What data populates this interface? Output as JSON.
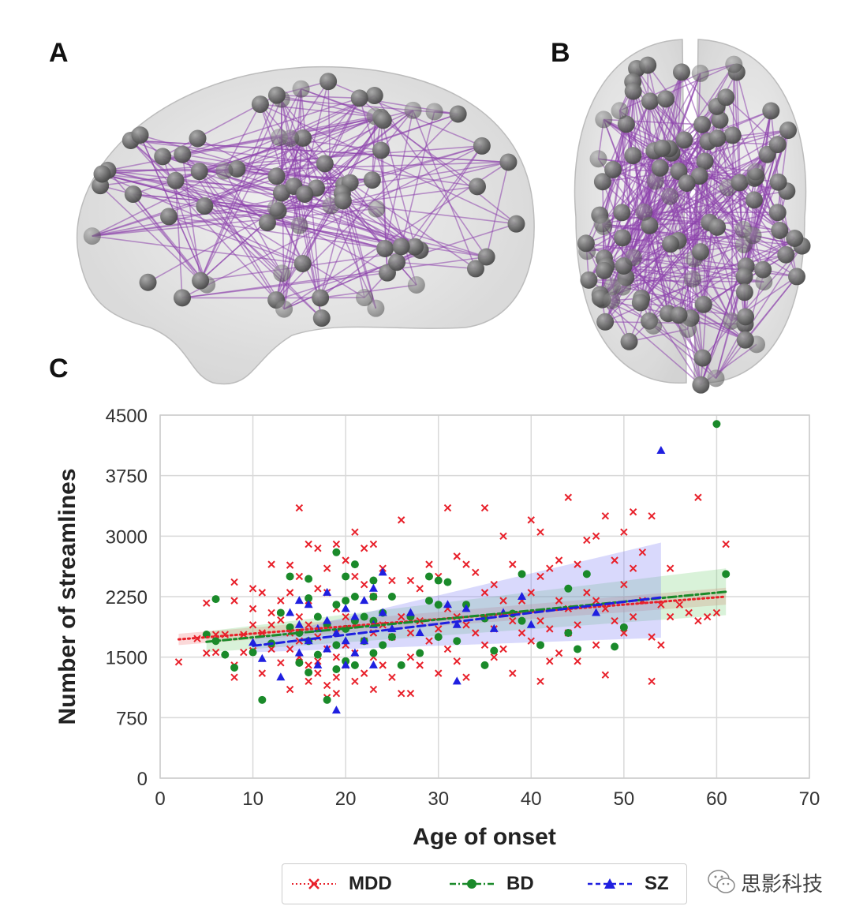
{
  "panels": {
    "a_label": "A",
    "b_label": "B",
    "c_label": "C"
  },
  "brain_colors": {
    "shell": "#d9d9d9",
    "node": "#6e6e6e",
    "edge": "#8e44ad"
  },
  "legend": {
    "items": [
      {
        "label": "MDD",
        "color": "#e8202a",
        "marker": "x",
        "linestyle": "dotted"
      },
      {
        "label": "BD",
        "color": "#1a8a2a",
        "marker": "circle",
        "linestyle": "dashdot"
      },
      {
        "label": "SZ",
        "color": "#1f1fe0",
        "marker": "triangle",
        "linestyle": "dashed"
      }
    ]
  },
  "watermark": {
    "text": "思影科技",
    "icon": "wechat-icon"
  },
  "chart_data": {
    "type": "scatter",
    "title": "",
    "xlabel": "Age of onset",
    "ylabel": "Number of streamlines",
    "xlim": [
      0,
      70
    ],
    "ylim": [
      0,
      4500
    ],
    "xticks": [
      0,
      10,
      20,
      30,
      40,
      50,
      60,
      70
    ],
    "yticks": [
      0,
      750,
      1500,
      2250,
      3000,
      3750,
      4500
    ],
    "grid": true,
    "legend_position": "bottom",
    "series": [
      {
        "name": "MDD",
        "color": "#e8202a",
        "marker": "x",
        "fit": {
          "x": [
            2,
            61
          ],
          "y": [
            1720,
            2250
          ]
        },
        "ci": {
          "x": [
            2,
            61
          ],
          "lower": [
            1650,
            2150
          ],
          "upper": [
            1790,
            2360
          ]
        },
        "points": [
          [
            2,
            1440
          ],
          [
            4,
            1730
          ],
          [
            5,
            2170
          ],
          [
            5,
            1550
          ],
          [
            6,
            1560
          ],
          [
            6,
            1780
          ],
          [
            7,
            1780
          ],
          [
            8,
            2430
          ],
          [
            8,
            2200
          ],
          [
            8,
            1400
          ],
          [
            8,
            1250
          ],
          [
            9,
            1560
          ],
          [
            9,
            1780
          ],
          [
            10,
            2350
          ],
          [
            10,
            1580
          ],
          [
            10,
            2100
          ],
          [
            10,
            1900
          ],
          [
            11,
            1300
          ],
          [
            11,
            2300
          ],
          [
            11,
            1800
          ],
          [
            12,
            2650
          ],
          [
            12,
            1600
          ],
          [
            12,
            1900
          ],
          [
            12,
            2050
          ],
          [
            13,
            1960
          ],
          [
            13,
            2200
          ],
          [
            13,
            1430
          ],
          [
            14,
            2640
          ],
          [
            14,
            2300
          ],
          [
            14,
            1600
          ],
          [
            14,
            1800
          ],
          [
            14,
            1100
          ],
          [
            15,
            3350
          ],
          [
            15,
            2000
          ],
          [
            15,
            1700
          ],
          [
            15,
            1500
          ],
          [
            15,
            2500
          ],
          [
            16,
            2900
          ],
          [
            16,
            1400
          ],
          [
            16,
            1900
          ],
          [
            16,
            1200
          ],
          [
            16,
            2200
          ],
          [
            17,
            2850
          ],
          [
            17,
            1750
          ],
          [
            17,
            1450
          ],
          [
            17,
            2350
          ],
          [
            17,
            1300
          ],
          [
            18,
            2300
          ],
          [
            18,
            2600
          ],
          [
            18,
            1600
          ],
          [
            18,
            1900
          ],
          [
            18,
            1150
          ],
          [
            19,
            2900
          ],
          [
            19,
            2100
          ],
          [
            19,
            1800
          ],
          [
            19,
            1500
          ],
          [
            19,
            1250
          ],
          [
            20,
            2700
          ],
          [
            20,
            2000
          ],
          [
            20,
            1650
          ],
          [
            20,
            1400
          ],
          [
            21,
            3050
          ],
          [
            21,
            2500
          ],
          [
            21,
            1900
          ],
          [
            21,
            1550
          ],
          [
            21,
            1200
          ],
          [
            22,
            2850
          ],
          [
            22,
            2400
          ],
          [
            22,
            1700
          ],
          [
            22,
            1300
          ],
          [
            23,
            2900
          ],
          [
            23,
            2250
          ],
          [
            23,
            1800
          ],
          [
            23,
            1500
          ],
          [
            23,
            1100
          ],
          [
            24,
            2600
          ],
          [
            24,
            1900
          ],
          [
            24,
            1400
          ],
          [
            25,
            2450
          ],
          [
            25,
            1750
          ],
          [
            25,
            1250
          ],
          [
            26,
            3200
          ],
          [
            26,
            2000
          ],
          [
            26,
            1050
          ],
          [
            27,
            2450
          ],
          [
            27,
            1800
          ],
          [
            27,
            1500
          ],
          [
            28,
            2350
          ],
          [
            28,
            1950
          ],
          [
            28,
            1400
          ],
          [
            29,
            2650
          ],
          [
            29,
            1700
          ],
          [
            30,
            2500
          ],
          [
            30,
            1850
          ],
          [
            30,
            1300
          ],
          [
            31,
            3350
          ],
          [
            31,
            2100
          ],
          [
            31,
            1600
          ],
          [
            32,
            2750
          ],
          [
            32,
            2000
          ],
          [
            32,
            1450
          ],
          [
            33,
            2650
          ],
          [
            33,
            1900
          ],
          [
            33,
            1250
          ],
          [
            34,
            2550
          ],
          [
            34,
            1800
          ],
          [
            35,
            3350
          ],
          [
            35,
            2300
          ],
          [
            35,
            1650
          ],
          [
            36,
            2400
          ],
          [
            36,
            1850
          ],
          [
            37,
            3000
          ],
          [
            37,
            2200
          ],
          [
            37,
            1600
          ],
          [
            38,
            2650
          ],
          [
            38,
            1950
          ],
          [
            38,
            1300
          ],
          [
            39,
            2200
          ],
          [
            39,
            1800
          ],
          [
            40,
            3200
          ],
          [
            40,
            2300
          ],
          [
            40,
            1700
          ],
          [
            41,
            3050
          ],
          [
            41,
            2500
          ],
          [
            41,
            1950
          ],
          [
            41,
            1200
          ],
          [
            42,
            2600
          ],
          [
            42,
            1850
          ],
          [
            43,
            2700
          ],
          [
            43,
            2200
          ],
          [
            43,
            1550
          ],
          [
            44,
            3480
          ],
          [
            44,
            2100
          ],
          [
            44,
            1800
          ],
          [
            45,
            2650
          ],
          [
            45,
            1900
          ],
          [
            45,
            1450
          ],
          [
            46,
            2950
          ],
          [
            46,
            2300
          ],
          [
            47,
            3000
          ],
          [
            47,
            2200
          ],
          [
            47,
            1650
          ],
          [
            48,
            3250
          ],
          [
            48,
            2100
          ],
          [
            48,
            1280
          ],
          [
            49,
            2700
          ],
          [
            49,
            1950
          ],
          [
            50,
            3050
          ],
          [
            50,
            2400
          ],
          [
            50,
            1800
          ],
          [
            51,
            3300
          ],
          [
            51,
            2600
          ],
          [
            51,
            2000
          ],
          [
            52,
            2800
          ],
          [
            52,
            2200
          ],
          [
            53,
            3250
          ],
          [
            53,
            1750
          ],
          [
            54,
            1650
          ],
          [
            54,
            2150
          ],
          [
            55,
            2600
          ],
          [
            55,
            2000
          ],
          [
            56,
            2150
          ],
          [
            57,
            2050
          ],
          [
            58,
            3480
          ],
          [
            58,
            1950
          ],
          [
            59,
            2000
          ],
          [
            60,
            2050
          ],
          [
            61,
            2900
          ],
          [
            53,
            1200
          ],
          [
            36,
            1500
          ],
          [
            42,
            1450
          ],
          [
            27,
            1050
          ],
          [
            19,
            1050
          ],
          [
            18,
            1000
          ]
        ]
      },
      {
        "name": "BD",
        "color": "#1a8a2a",
        "marker": "circle",
        "fit": {
          "x": [
            5,
            61
          ],
          "y": [
            1690,
            2310
          ]
        },
        "ci": {
          "x": [
            5,
            61
          ],
          "lower": [
            1560,
            2020
          ],
          "upper": [
            1820,
            2600
          ]
        },
        "points": [
          [
            5,
            1780
          ],
          [
            6,
            2220
          ],
          [
            6,
            1700
          ],
          [
            7,
            1530
          ],
          [
            8,
            1370
          ],
          [
            10,
            1560
          ],
          [
            11,
            970
          ],
          [
            12,
            1670
          ],
          [
            13,
            2050
          ],
          [
            14,
            2500
          ],
          [
            14,
            1870
          ],
          [
            15,
            1800
          ],
          [
            15,
            1430
          ],
          [
            16,
            2470
          ],
          [
            16,
            2230
          ],
          [
            16,
            1700
          ],
          [
            16,
            1310
          ],
          [
            17,
            2000
          ],
          [
            17,
            1530
          ],
          [
            18,
            970
          ],
          [
            18,
            1900
          ],
          [
            19,
            2800
          ],
          [
            19,
            2150
          ],
          [
            19,
            1650
          ],
          [
            19,
            1350
          ],
          [
            20,
            2500
          ],
          [
            20,
            2200
          ],
          [
            20,
            1850
          ],
          [
            20,
            1450
          ],
          [
            21,
            2650
          ],
          [
            21,
            2250
          ],
          [
            21,
            1950
          ],
          [
            21,
            1400
          ],
          [
            22,
            2000
          ],
          [
            22,
            1700
          ],
          [
            23,
            2450
          ],
          [
            23,
            2250
          ],
          [
            23,
            1950
          ],
          [
            23,
            1550
          ],
          [
            24,
            2050
          ],
          [
            24,
            1650
          ],
          [
            25,
            2250
          ],
          [
            25,
            1750
          ],
          [
            26,
            1400
          ],
          [
            27,
            2000
          ],
          [
            28,
            1550
          ],
          [
            29,
            2500
          ],
          [
            29,
            2200
          ],
          [
            30,
            2450
          ],
          [
            30,
            2150
          ],
          [
            30,
            1750
          ],
          [
            31,
            2430
          ],
          [
            32,
            1700
          ],
          [
            33,
            2150
          ],
          [
            35,
            1980
          ],
          [
            35,
            1400
          ],
          [
            36,
            1580
          ],
          [
            38,
            2040
          ],
          [
            39,
            2530
          ],
          [
            39,
            1950
          ],
          [
            41,
            1650
          ],
          [
            44,
            2350
          ],
          [
            44,
            1800
          ],
          [
            45,
            1600
          ],
          [
            46,
            2530
          ],
          [
            49,
            1630
          ],
          [
            50,
            1870
          ],
          [
            60,
            4390
          ],
          [
            61,
            2530
          ]
        ]
      },
      {
        "name": "SZ",
        "color": "#1f1fe0",
        "marker": "triangle",
        "fit": {
          "x": [
            10,
            54
          ],
          "y": [
            1640,
            2240
          ]
        },
        "ci": {
          "x": [
            10,
            54
          ],
          "lower": [
            1560,
            1740
          ],
          "upper": [
            1720,
            2920
          ]
        },
        "points": [
          [
            10,
            1680
          ],
          [
            11,
            1480
          ],
          [
            13,
            1250
          ],
          [
            14,
            2050
          ],
          [
            15,
            2200
          ],
          [
            15,
            1900
          ],
          [
            15,
            1550
          ],
          [
            16,
            2150
          ],
          [
            16,
            1700
          ],
          [
            17,
            1850
          ],
          [
            17,
            1400
          ],
          [
            18,
            2300
          ],
          [
            18,
            1950
          ],
          [
            18,
            1600
          ],
          [
            19,
            840
          ],
          [
            19,
            1800
          ],
          [
            20,
            2100
          ],
          [
            20,
            1700
          ],
          [
            20,
            1400
          ],
          [
            21,
            2000
          ],
          [
            21,
            1550
          ],
          [
            22,
            2200
          ],
          [
            22,
            1700
          ],
          [
            23,
            2350
          ],
          [
            23,
            1900
          ],
          [
            23,
            1400
          ],
          [
            24,
            2550
          ],
          [
            24,
            2050
          ],
          [
            25,
            1850
          ],
          [
            27,
            2050
          ],
          [
            28,
            1800
          ],
          [
            31,
            2150
          ],
          [
            32,
            1200
          ],
          [
            32,
            1900
          ],
          [
            33,
            2100
          ],
          [
            36,
            1850
          ],
          [
            37,
            2050
          ],
          [
            39,
            2250
          ],
          [
            40,
            1900
          ],
          [
            47,
            2050
          ],
          [
            54,
            4060
          ]
        ]
      }
    ]
  }
}
